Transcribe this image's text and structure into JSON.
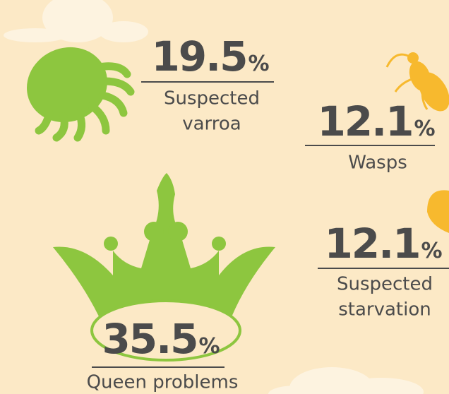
{
  "items": [
    {
      "value": "19.5",
      "unit": "%",
      "label": [
        "Suspected",
        "varroa"
      ]
    },
    {
      "value": "12.1",
      "unit": "%",
      "label": [
        "Wasps"
      ]
    },
    {
      "value": "12.1",
      "unit": "%",
      "label": [
        "Suspected",
        "starvation"
      ]
    },
    {
      "value": "35.5",
      "unit": "%",
      "label": [
        "Queen problems"
      ]
    }
  ]
}
